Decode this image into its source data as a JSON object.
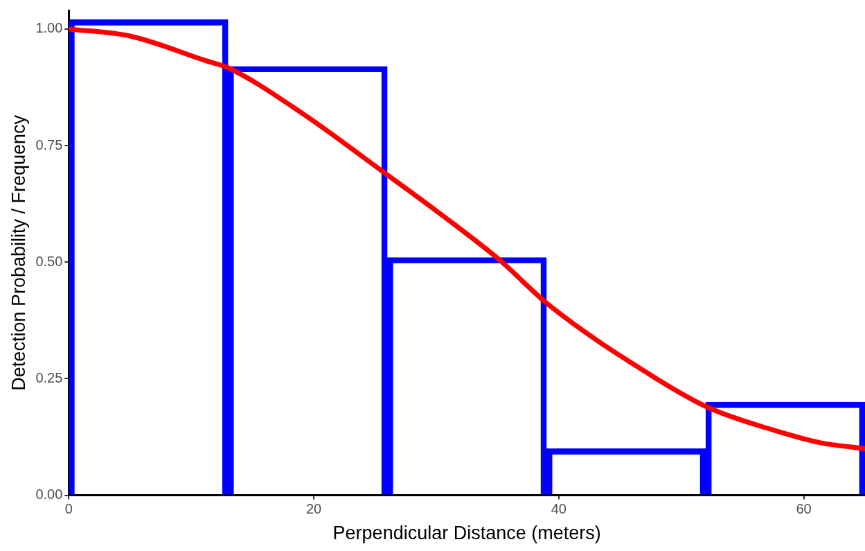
{
  "chart_data": {
    "type": "histogram",
    "xlabel": "Perpendicular Distance (meters)",
    "ylabel": "Detection Probability / Frequency",
    "bins": [
      0,
      13,
      26,
      39,
      52,
      65
    ],
    "values": [
      1.02,
      0.92,
      0.51,
      0.1,
      0.2
    ],
    "color": "#0000ff",
    "series": [
      {
        "type": "line",
        "color": "#ff0000",
        "x": [
          0,
          5,
          11.2,
          13,
          18.9,
          25.9,
          30,
          35.2,
          39.1,
          47.8,
          52.3,
          57.5,
          61.3,
          65
        ],
        "values": [
          1.0,
          0.985,
          0.932,
          0.917,
          0.822,
          0.689,
          0.61,
          0.504,
          0.41,
          0.253,
          0.187,
          0.14,
          0.113,
          0.1
        ]
      }
    ],
    "xlim": [
      0,
      65
    ],
    "ylim": [
      0,
      1.04
    ],
    "xticks": [
      0,
      20,
      40,
      60
    ],
    "yticks": [
      {
        "value": 0,
        "label": "0.00"
      },
      {
        "value": 0.25,
        "label": "0.25"
      },
      {
        "value": 0.5,
        "label": "0.50"
      },
      {
        "value": 0.75,
        "label": "0.75"
      },
      {
        "value": 1,
        "label": "1.00"
      }
    ],
    "grid": false
  }
}
